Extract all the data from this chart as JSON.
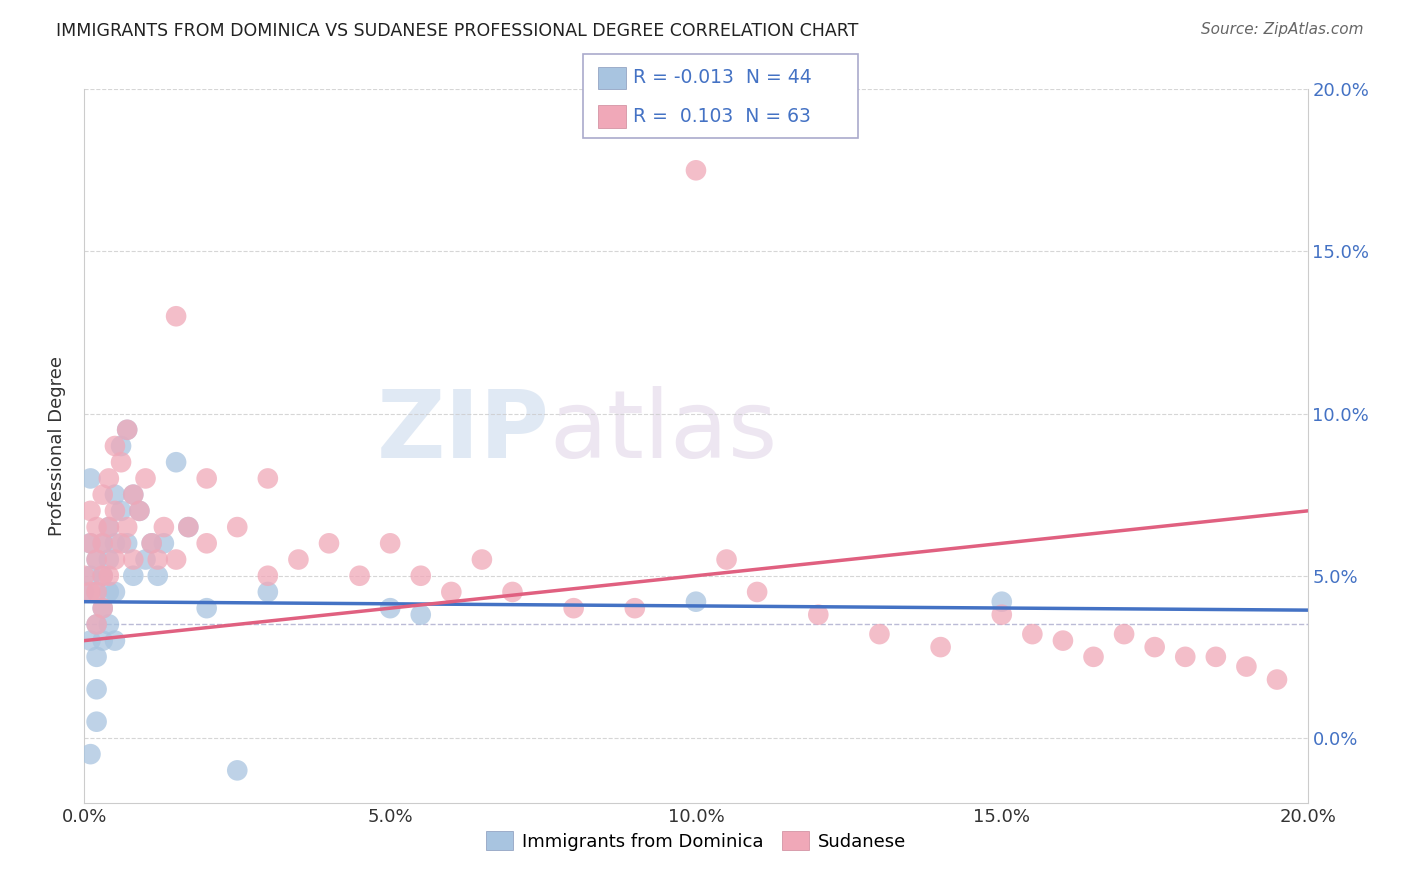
{
  "title": "IMMIGRANTS FROM DOMINICA VS SUDANESE PROFESSIONAL DEGREE CORRELATION CHART",
  "source": "Source: ZipAtlas.com",
  "ylabel": "Professional Degree",
  "xlim": [
    0.0,
    0.2
  ],
  "ylim": [
    -0.02,
    0.2
  ],
  "xtick_vals": [
    0.0,
    0.05,
    0.1,
    0.15,
    0.2
  ],
  "ytick_vals": [
    0.0,
    0.05,
    0.1,
    0.15,
    0.2
  ],
  "color_blue": "#a8c4e0",
  "color_pink": "#f0a8b8",
  "color_blue_dark": "#4472c4",
  "color_pink_dark": "#e06080",
  "legend_r1": "-0.013",
  "legend_n1": "44",
  "legend_r2": "0.103",
  "legend_n2": "63",
  "watermark_zip": "ZIP",
  "watermark_atlas": "atlas",
  "dashed_line_y": 0.035,
  "blue_trend_intercept": 0.042,
  "blue_trend_slope": -0.013,
  "pink_trend_intercept": 0.03,
  "pink_trend_slope": 0.2,
  "blue_points_x": [
    0.0,
    0.001,
    0.001,
    0.001,
    0.001,
    0.001,
    0.002,
    0.002,
    0.002,
    0.002,
    0.002,
    0.002,
    0.003,
    0.003,
    0.003,
    0.003,
    0.004,
    0.004,
    0.004,
    0.004,
    0.005,
    0.005,
    0.005,
    0.005,
    0.006,
    0.006,
    0.007,
    0.007,
    0.008,
    0.008,
    0.009,
    0.01,
    0.011,
    0.012,
    0.013,
    0.015,
    0.017,
    0.02,
    0.025,
    0.03,
    0.05,
    0.055,
    0.1,
    0.15
  ],
  "blue_points_y": [
    0.045,
    0.08,
    0.06,
    0.05,
    0.03,
    -0.005,
    0.055,
    0.045,
    0.035,
    0.025,
    0.015,
    0.005,
    0.06,
    0.05,
    0.04,
    0.03,
    0.065,
    0.055,
    0.045,
    0.035,
    0.075,
    0.06,
    0.045,
    0.03,
    0.09,
    0.07,
    0.095,
    0.06,
    0.075,
    0.05,
    0.07,
    0.055,
    0.06,
    0.05,
    0.06,
    0.085,
    0.065,
    0.04,
    -0.01,
    0.045,
    0.04,
    0.038,
    0.042,
    0.042
  ],
  "pink_points_x": [
    0.0,
    0.001,
    0.001,
    0.001,
    0.002,
    0.002,
    0.002,
    0.002,
    0.003,
    0.003,
    0.003,
    0.003,
    0.004,
    0.004,
    0.004,
    0.005,
    0.005,
    0.005,
    0.006,
    0.006,
    0.007,
    0.007,
    0.008,
    0.008,
    0.009,
    0.01,
    0.011,
    0.012,
    0.013,
    0.015,
    0.017,
    0.02,
    0.025,
    0.03,
    0.035,
    0.04,
    0.045,
    0.05,
    0.055,
    0.06,
    0.065,
    0.07,
    0.08,
    0.09,
    0.1,
    0.105,
    0.11,
    0.12,
    0.13,
    0.14,
    0.15,
    0.155,
    0.16,
    0.165,
    0.17,
    0.175,
    0.18,
    0.185,
    0.19,
    0.195,
    0.015,
    0.03,
    0.02
  ],
  "pink_points_y": [
    0.05,
    0.07,
    0.06,
    0.045,
    0.065,
    0.055,
    0.045,
    0.035,
    0.075,
    0.06,
    0.05,
    0.04,
    0.08,
    0.065,
    0.05,
    0.09,
    0.07,
    0.055,
    0.085,
    0.06,
    0.095,
    0.065,
    0.075,
    0.055,
    0.07,
    0.08,
    0.06,
    0.055,
    0.065,
    0.055,
    0.065,
    0.06,
    0.065,
    0.05,
    0.055,
    0.06,
    0.05,
    0.06,
    0.05,
    0.045,
    0.055,
    0.045,
    0.04,
    0.04,
    0.175,
    0.055,
    0.045,
    0.038,
    0.032,
    0.028,
    0.038,
    0.032,
    0.03,
    0.025,
    0.032,
    0.028,
    0.025,
    0.025,
    0.022,
    0.018,
    0.13,
    0.08,
    0.08
  ]
}
